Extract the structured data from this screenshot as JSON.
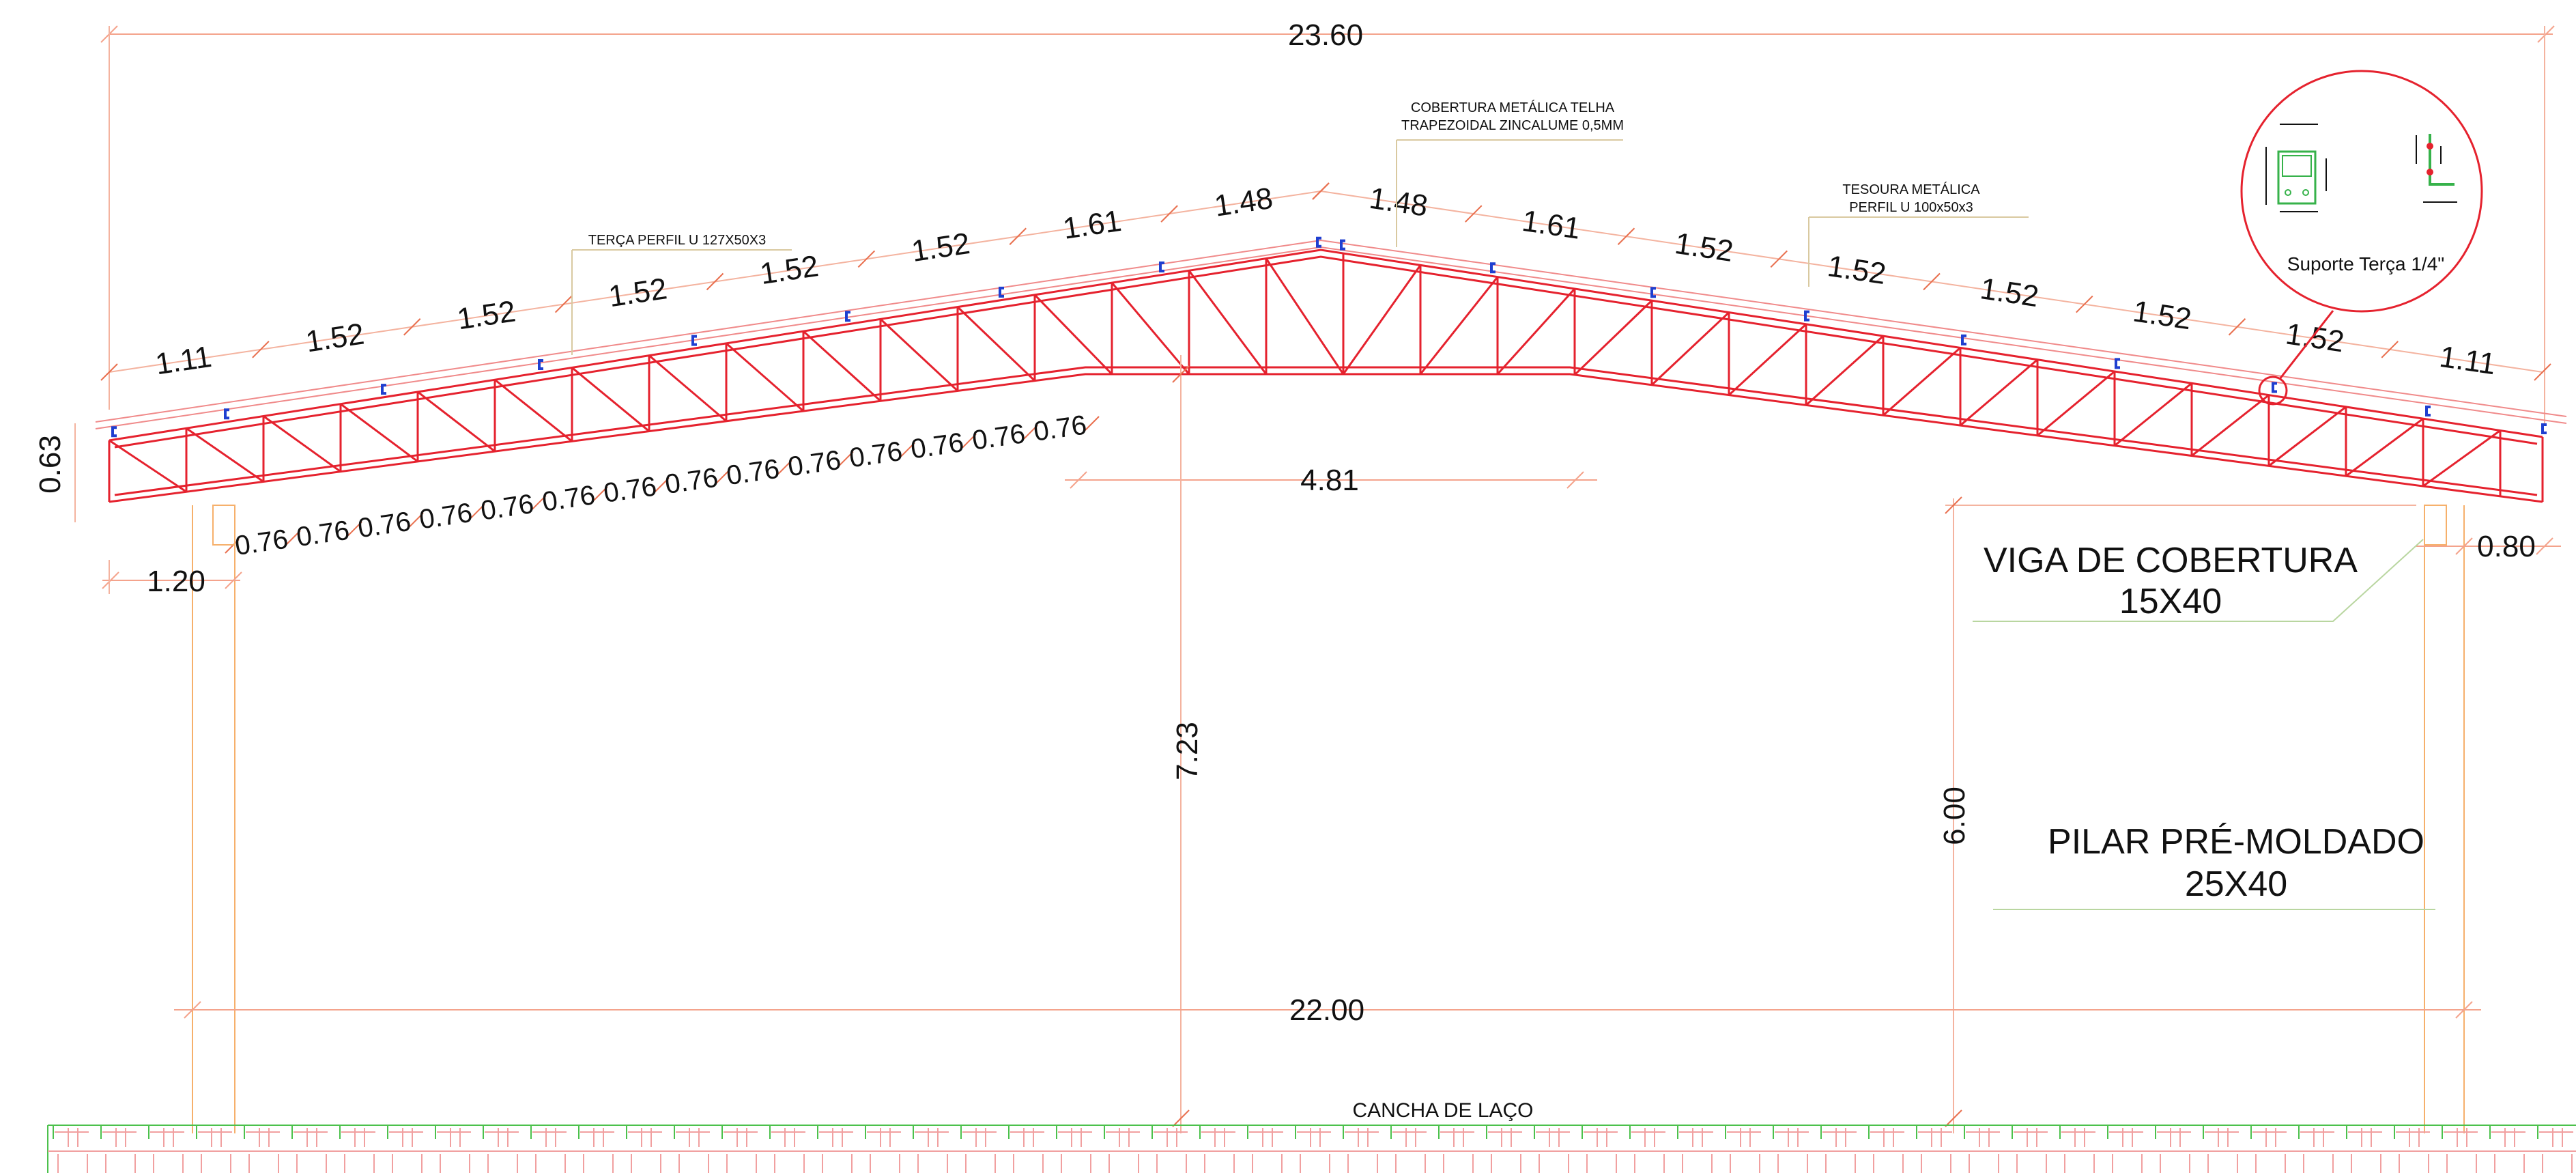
{
  "dimensions": {
    "overall_width": "23.60",
    "span": "22.00",
    "center_flat": "4.81",
    "truss_depth": "0.63",
    "left_overhang": "1.20",
    "right_overhang": "0.80",
    "ridge_height": "7.23",
    "column_height": "6.00",
    "top_segments_left": [
      "1.11",
      "1.52",
      "1.52",
      "1.52",
      "1.52",
      "1.52",
      "1.61",
      "1.48"
    ],
    "top_segments_right": [
      "1.48",
      "1.61",
      "1.52",
      "1.52",
      "1.52",
      "1.52",
      "1.52",
      "1.11"
    ],
    "bottom_panels": [
      "0.76",
      "0.76",
      "0.76",
      "0.76",
      "0.76",
      "0.76",
      "0.76",
      "0.76",
      "0.76",
      "0.76",
      "0.76",
      "0.76",
      "0.76",
      "0.76"
    ]
  },
  "labels": {
    "roof_cover_line1": "COBERTURA METÁLICA TELHA",
    "roof_cover_line2": "TRAPEZOIDAL ZINCALUME 0,5MM",
    "truss_line1": "TESOURA METÁLICA",
    "truss_line2": "PERFIL U 100x50x3",
    "purlin": "TERÇA PERFIL U 127X50X3",
    "detail_caption": "Suporte Terça 1/4\"",
    "beam_line1": "VIGA DE COBERTURA",
    "beam_line2": "15X40",
    "pillar_line1": "PILAR PRÉ-MOLDADO",
    "pillar_line2": "25X40",
    "ground": "CANCHA  DE  LAÇO"
  },
  "colors": {
    "truss": "#e5222e",
    "dimension": "#f4a38c",
    "purlin": "#1f3fd0",
    "ground": "#4cc14c",
    "detail_circle": "#e5222e",
    "detail_plate": "#36b24a"
  }
}
